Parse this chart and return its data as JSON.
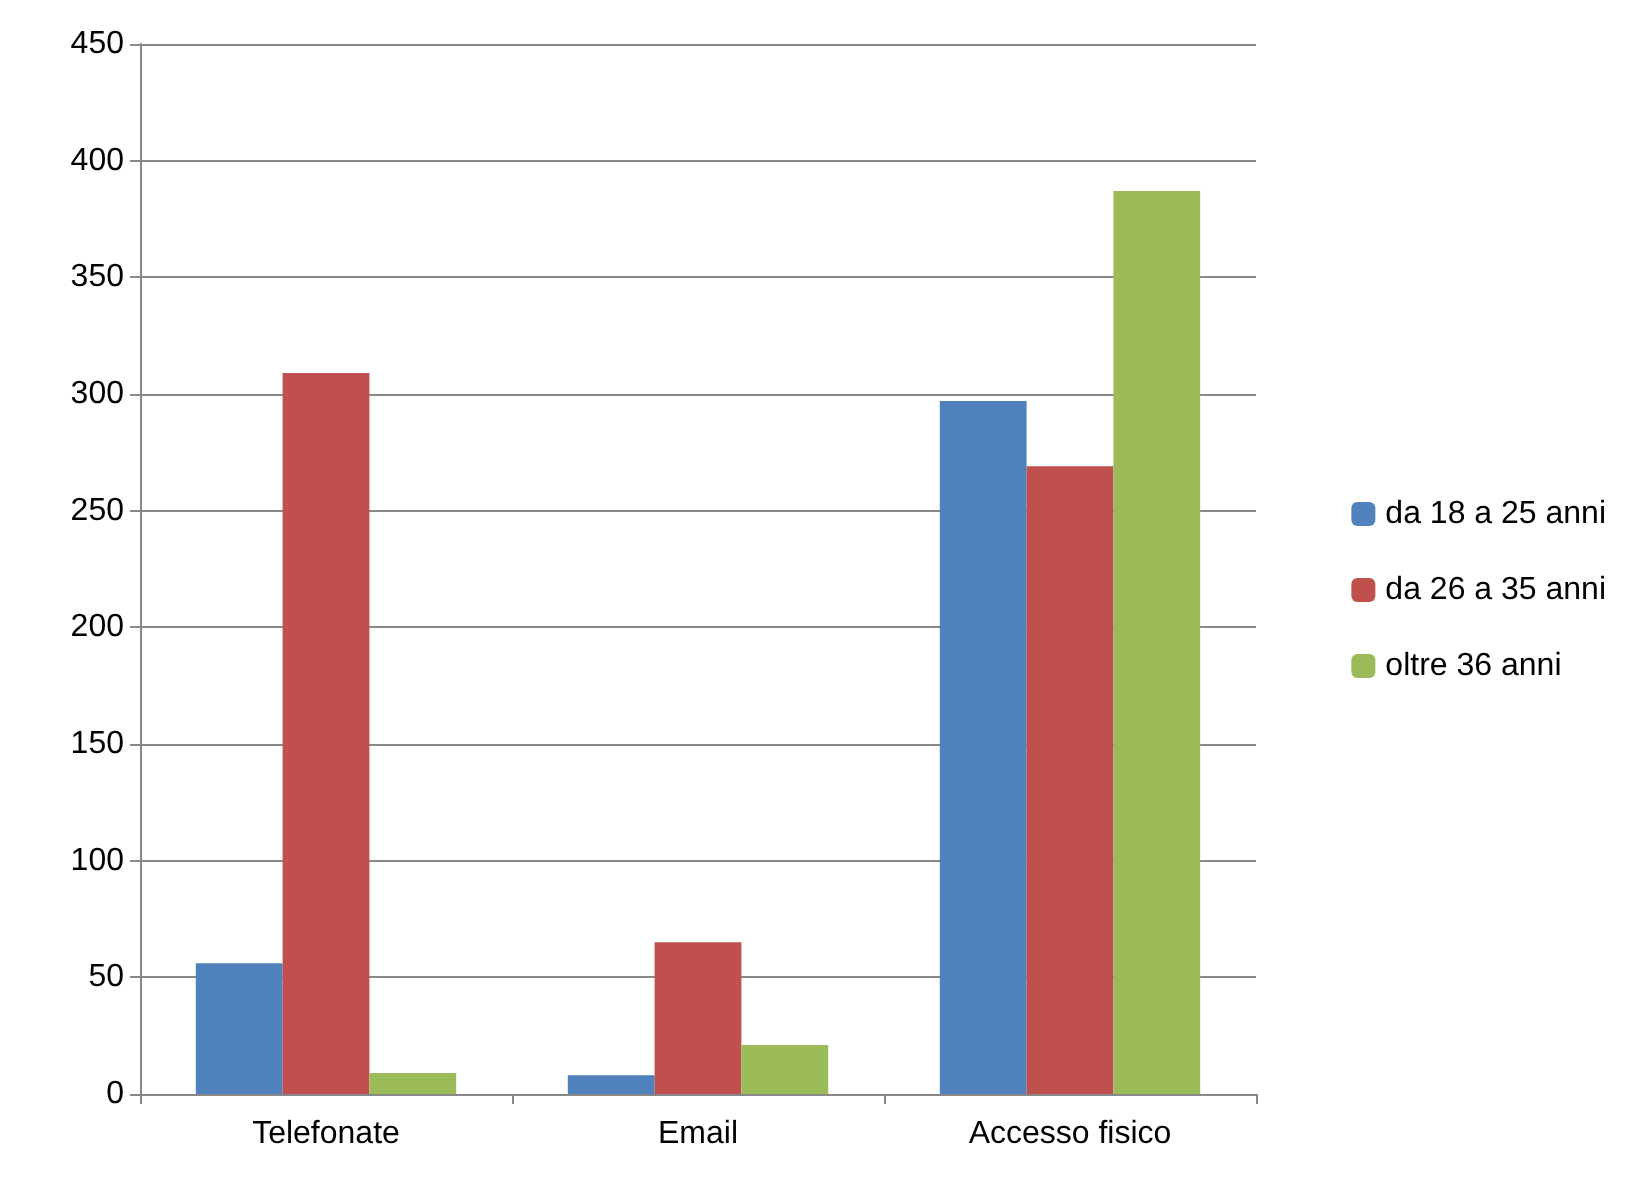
{
  "chart_data": {
    "type": "bar",
    "categories": [
      "Telefonate",
      "Email",
      "Accesso fisico"
    ],
    "series": [
      {
        "name": "da 18 a 25 anni",
        "color": "#4f81bd",
        "values": [
          56,
          8,
          297
        ]
      },
      {
        "name": "da 26 a 35 anni",
        "color": "#c0504d",
        "values": [
          309,
          65,
          269
        ]
      },
      {
        "name": "oltre 36 anni",
        "color": "#9bbb59",
        "values": [
          9,
          21,
          387
        ]
      }
    ],
    "ylim": [
      0,
      450
    ],
    "yticks": [
      0,
      50,
      100,
      150,
      200,
      250,
      300,
      350,
      400,
      450
    ],
    "grid": "y",
    "legend": "right"
  }
}
